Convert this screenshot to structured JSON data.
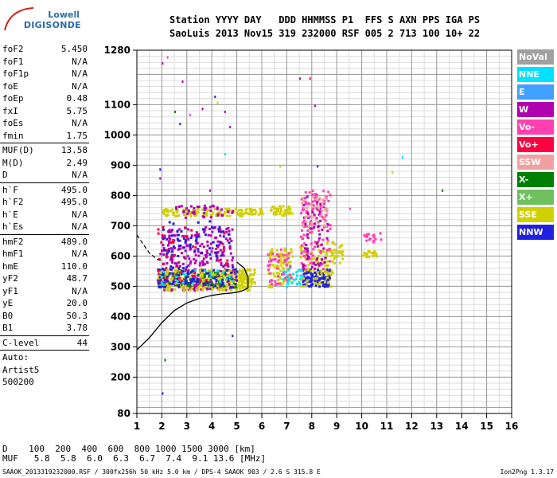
{
  "logo": {
    "line1": "Lowell",
    "line2": "DIGISONDE"
  },
  "header": {
    "line1": "Station YYYY DAY   DDD HHMMSS P1  FFS S AXN PPS IGA PS",
    "line2": "SaoLuis 2013 Nov15 319 232000 RSF 005 2 713 100 10+ 22"
  },
  "params": [
    [
      {
        "label": "foF2",
        "value": "5.450"
      },
      {
        "label": "foF1",
        "value": "N/A"
      },
      {
        "label": "foF1p",
        "value": "N/A"
      },
      {
        "label": "foE",
        "value": "N/A"
      },
      {
        "label": "foEp",
        "value": "0.48"
      },
      {
        "label": "fxI",
        "value": "5.75"
      },
      {
        "label": "foEs",
        "value": "N/A"
      },
      {
        "label": "fmin",
        "value": "1.75"
      }
    ],
    [
      {
        "label": "MUF(D)",
        "value": "13.58"
      },
      {
        "label": "M(D)",
        "value": "2.49"
      },
      {
        "label": "D",
        "value": "N/A"
      }
    ],
    [
      {
        "label": "h`F",
        "value": "495.0"
      },
      {
        "label": "h`F2",
        "value": "495.0"
      },
      {
        "label": "h`E",
        "value": "N/A"
      },
      {
        "label": "h`Es",
        "value": "N/A"
      }
    ],
    [
      {
        "label": "hmF2",
        "value": "489.0"
      },
      {
        "label": "hmF1",
        "value": "N/A"
      },
      {
        "label": "hmE",
        "value": "110.0"
      },
      {
        "label": "yF2",
        "value": "48.7"
      },
      {
        "label": "yF1",
        "value": "N/A"
      },
      {
        "label": "yE",
        "value": "20.0"
      },
      {
        "label": "B0",
        "value": "50.3"
      },
      {
        "label": "B1",
        "value": "3.78"
      }
    ],
    [
      {
        "label": "C-level",
        "value": "44"
      }
    ],
    [
      {
        "label": "Auto:",
        "value": ""
      },
      {
        "label": "Artist5",
        "value": ""
      },
      {
        "label": "500200",
        "value": ""
      }
    ]
  ],
  "legend": [
    {
      "name": "NoVal",
      "color": "#a0a0a0"
    },
    {
      "name": "NNE",
      "color": "#00e0ff"
    },
    {
      "name": "E",
      "color": "#40a0ff"
    },
    {
      "name": "W",
      "color": "#b000b0"
    },
    {
      "name": "Vo-",
      "color": "#ff40b0"
    },
    {
      "name": "Vo+",
      "color": "#ff0040"
    },
    {
      "name": "SSW",
      "color": "#f0a0a0"
    },
    {
      "name": "X-",
      "color": "#008000"
    },
    {
      "name": "X+",
      "color": "#70c060"
    },
    {
      "name": "SSE",
      "color": "#d0d000"
    },
    {
      "name": "NNW",
      "color": "#2020e0"
    }
  ],
  "footer": {
    "line1": "D    100  200  400  600  800 1000 1500 3000 [km]",
    "line2": "MUF   5.8  5.8  6.0  6.3  6.7  7.4  9.1 13.6 [MHz]"
  },
  "footnote": "SAAOK_2013319232000.RSF / 300fx256h 50 kHz 5.0 km / DPS-4 SAAOK 903 / 2.6 S 315.8 E",
  "version": "Ion2Png 1.3.17",
  "chart_data": {
    "type": "scatter",
    "xlim": [
      1,
      16
    ],
    "ylim": [
      80,
      1280
    ],
    "x_ticks": [
      1,
      2,
      3,
      4,
      5,
      6,
      7,
      8,
      9,
      10,
      11,
      12,
      13,
      14,
      15,
      16
    ],
    "y_ticks": [
      80,
      200,
      300,
      400,
      500,
      600,
      700,
      800,
      900,
      1000,
      1100,
      1280
    ],
    "grid": true,
    "clusters": [
      {
        "color": "#b000b0",
        "x": [
          1.8,
          5.0
        ],
        "y": [
          490,
          560
        ],
        "n": 220
      },
      {
        "color": "#008000",
        "x": [
          1.8,
          5.0
        ],
        "y": [
          500,
          555
        ],
        "n": 120
      },
      {
        "color": "#d0d000",
        "x": [
          1.8,
          5.5
        ],
        "y": [
          490,
          560
        ],
        "n": 200
      },
      {
        "color": "#2020e0",
        "x": [
          1.8,
          5.0
        ],
        "y": [
          500,
          570
        ],
        "n": 90
      },
      {
        "color": "#b000b0",
        "x": [
          1.9,
          4.8
        ],
        "y": [
          570,
          700
        ],
        "n": 180
      },
      {
        "color": "#2020e0",
        "x": [
          2.0,
          4.8
        ],
        "y": [
          600,
          720
        ],
        "n": 60
      },
      {
        "color": "#d0d000",
        "x": [
          2.0,
          5.2
        ],
        "y": [
          735,
          760
        ],
        "n": 110
      },
      {
        "color": "#b000b0",
        "x": [
          2.5,
          4.8
        ],
        "y": [
          730,
          770
        ],
        "n": 40
      },
      {
        "color": "#d0d000",
        "x": [
          5.0,
          5.7
        ],
        "y": [
          500,
          560
        ],
        "n": 60
      },
      {
        "color": "#d0d000",
        "x": [
          5.2,
          6.0
        ],
        "y": [
          740,
          760
        ],
        "n": 35
      },
      {
        "color": "#d0d000",
        "x": [
          6.2,
          7.2
        ],
        "y": [
          500,
          630
        ],
        "n": 90
      },
      {
        "color": "#ff40b0",
        "x": [
          6.2,
          7.2
        ],
        "y": [
          505,
          625
        ],
        "n": 50
      },
      {
        "color": "#d0d000",
        "x": [
          6.3,
          7.2
        ],
        "y": [
          735,
          770
        ],
        "n": 50
      },
      {
        "color": "#2020e0",
        "x": [
          7.6,
          8.7
        ],
        "y": [
          500,
          560
        ],
        "n": 110
      },
      {
        "color": "#d0d000",
        "x": [
          7.5,
          8.8
        ],
        "y": [
          500,
          650
        ],
        "n": 90
      },
      {
        "color": "#ff40b0",
        "x": [
          7.5,
          8.7
        ],
        "y": [
          560,
          820
        ],
        "n": 110
      },
      {
        "color": "#b000b0",
        "x": [
          7.6,
          8.6
        ],
        "y": [
          560,
          800
        ],
        "n": 70
      },
      {
        "color": "#f0a0a0",
        "x": [
          7.5,
          8.6
        ],
        "y": [
          700,
          800
        ],
        "n": 40
      },
      {
        "color": "#d0d000",
        "x": [
          8.7,
          9.2
        ],
        "y": [
          580,
          650
        ],
        "n": 30
      },
      {
        "color": "#00e0ff",
        "x": [
          6.8,
          7.6
        ],
        "y": [
          500,
          560
        ],
        "n": 25
      },
      {
        "color": "#d0d000",
        "x": [
          10.0,
          10.6
        ],
        "y": [
          600,
          620
        ],
        "n": 22
      },
      {
        "color": "#ff40b0",
        "x": [
          10.0,
          10.8
        ],
        "y": [
          650,
          680
        ],
        "n": 18
      },
      {
        "color": "#ff0040",
        "x": [
          1.8,
          5.0
        ],
        "y": [
          520,
          700
        ],
        "n": 40
      },
      {
        "color": "#00e0ff",
        "x": [
          1.8,
          5.0
        ],
        "y": [
          500,
          560
        ],
        "n": 20
      }
    ],
    "sparse_points": [
      [
        2.0,
        1240,
        "#b000b0"
      ],
      [
        2.2,
        1260,
        "#ff40b0"
      ],
      [
        2.5,
        1080,
        "#008000"
      ],
      [
        2.7,
        1040,
        "#2020e0"
      ],
      [
        2.8,
        1180,
        "#b000b0"
      ],
      [
        3.1,
        1070,
        "#ff40b0"
      ],
      [
        3.6,
        1090,
        "#b000b0"
      ],
      [
        4.1,
        1130,
        "#2020e0"
      ],
      [
        4.5,
        1080,
        "#b000b0"
      ],
      [
        4.2,
        1110,
        "#d0d000"
      ],
      [
        4.7,
        1030,
        "#b000b0"
      ],
      [
        4.5,
        940,
        "#00e0ff"
      ],
      [
        1.9,
        860,
        "#b000b0"
      ],
      [
        1.9,
        890,
        "#2020e0"
      ],
      [
        2.1,
        260,
        "#008000"
      ],
      [
        2.0,
        150,
        "#2020e0"
      ],
      [
        4.8,
        340,
        "#2020e0"
      ],
      [
        6.7,
        900,
        "#d0d000"
      ],
      [
        7.5,
        1190,
        "#b000b0"
      ],
      [
        7.9,
        1190,
        "#ff0040"
      ],
      [
        8.1,
        1100,
        "#b000b0"
      ],
      [
        8.2,
        900,
        "#2020e0"
      ],
      [
        11.6,
        930,
        "#00e0ff"
      ],
      [
        11.2,
        880,
        "#d0d000"
      ],
      [
        13.2,
        820,
        "#008000"
      ],
      [
        9.5,
        760,
        "#ff40b0"
      ],
      [
        3.9,
        820,
        "#b000b0"
      ]
    ],
    "profile_curve": {
      "x": [
        1.0,
        1.5,
        2.0,
        2.5,
        3.0,
        3.5,
        4.0,
        4.4,
        4.8,
        5.1,
        5.3,
        5.45,
        5.45,
        5.3,
        5.0
      ],
      "y": [
        290,
        330,
        380,
        420,
        445,
        460,
        470,
        475,
        478,
        482,
        488,
        495,
        530,
        560,
        580
      ]
    },
    "dashed_curve": {
      "x": [
        1.0,
        1.25,
        1.5,
        1.8,
        2.0
      ],
      "y": [
        670,
        640,
        610,
        590,
        585
      ]
    }
  }
}
